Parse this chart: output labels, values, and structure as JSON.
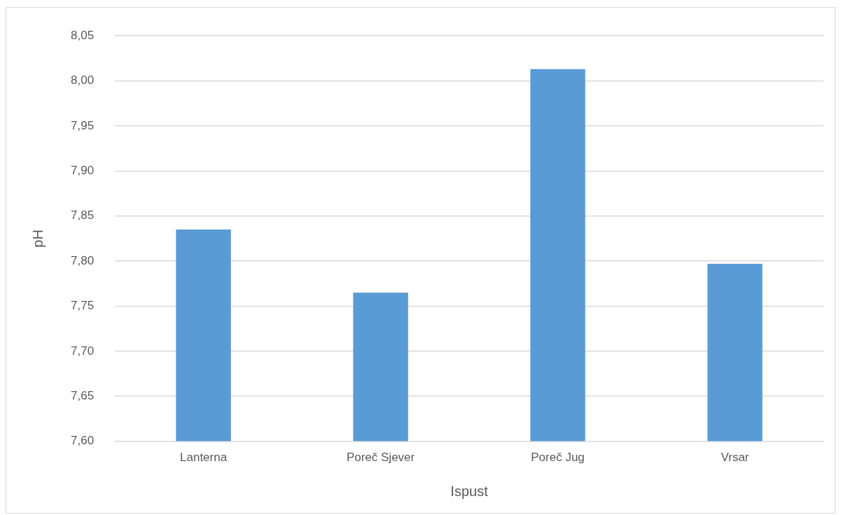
{
  "chart_data": {
    "type": "bar",
    "xlabel": "Ispust",
    "ylabel": "pH",
    "categories": [
      "Lanterna",
      "Poreč Sjever",
      "Poreč Jug",
      "Vrsar"
    ],
    "values": [
      7.835,
      7.765,
      8.013,
      7.797
    ],
    "color": "#5b9bd5",
    "ylim": [
      7.6,
      8.05
    ],
    "yticks": [
      {
        "value": 7.6,
        "label": "7,60"
      },
      {
        "value": 7.65,
        "label": "7,65"
      },
      {
        "value": 7.7,
        "label": "7,70"
      },
      {
        "value": 7.75,
        "label": "7,75"
      },
      {
        "value": 7.8,
        "label": "7,80"
      },
      {
        "value": 7.85,
        "label": "7,85"
      },
      {
        "value": 7.9,
        "label": "7,90"
      },
      {
        "value": 7.95,
        "label": "7,95"
      },
      {
        "value": 8.0,
        "label": "8,00"
      },
      {
        "value": 8.05,
        "label": "8,05"
      }
    ],
    "grid": "y",
    "legend": false
  }
}
